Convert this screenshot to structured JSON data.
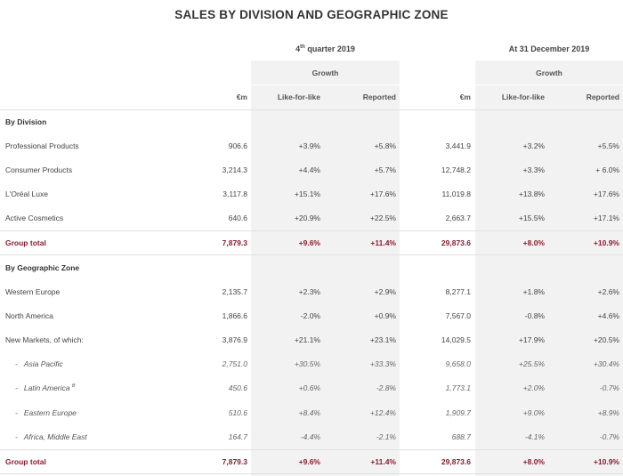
{
  "title": "SALES BY DIVISION AND GEOGRAPHIC ZONE",
  "periods": {
    "q4": {
      "pre": "4",
      "sup": "th",
      "post": " quarter 2019"
    },
    "fy": "At 31 December 2019"
  },
  "headers": {
    "growth": "Growth",
    "em": "€m",
    "lfl": "Like-for-like",
    "reported": "Reported"
  },
  "division": {
    "heading": "By Division",
    "rows": [
      {
        "label": "Professional Products",
        "q4": "906.6",
        "q4_lfl": "+3.9%",
        "q4_rep": "+5.8%",
        "fy": "3,441.9",
        "fy_lfl": "+3.2%",
        "fy_rep": "+5.5%"
      },
      {
        "label": "Consumer Products",
        "q4": "3,214.3",
        "q4_lfl": "+4.4%",
        "q4_rep": "+5.7%",
        "fy": "12,748.2",
        "fy_lfl": "+3.3%",
        "fy_rep": "+ 6.0%"
      },
      {
        "label": "L'Oréal Luxe",
        "q4": "3,117.8",
        "q4_lfl": "+15.1%",
        "q4_rep": "+17.6%",
        "fy": "11,019.8",
        "fy_lfl": "+13.8%",
        "fy_rep": "+17.6%"
      },
      {
        "label": "Active Cosmetics",
        "q4": "640.6",
        "q4_lfl": "+20.9%",
        "q4_rep": "+22.5%",
        "fy": "2,663.7",
        "fy_lfl": "+15.5%",
        "fy_rep": "+17.1%"
      }
    ],
    "total": {
      "label": "Group total",
      "q4": "7,879.3",
      "q4_lfl": "+9.6%",
      "q4_rep": "+11.4%",
      "fy": "29,873.6",
      "fy_lfl": "+8.0%",
      "fy_rep": "+10.9%"
    }
  },
  "zone": {
    "heading": "By Geographic Zone",
    "rows": [
      {
        "label": "Western Europe",
        "q4": "2,135.7",
        "q4_lfl": "+2.3%",
        "q4_rep": "+2.9%",
        "fy": "8,277.1",
        "fy_lfl": "+1.8%",
        "fy_rep": "+2.6%"
      },
      {
        "label": "North America",
        "q4": "1,866.6",
        "q4_lfl": "-2.0%",
        "q4_rep": "+0.9%",
        "fy": "7,567.0",
        "fy_lfl": "-0.8%",
        "fy_rep": "+4.6%"
      },
      {
        "label": "New Markets, of which:",
        "q4": "3,876.9",
        "q4_lfl": "+21.1%",
        "q4_rep": "+23.1%",
        "fy": "14,029.5",
        "fy_lfl": "+17.9%",
        "fy_rep": "+20.5%"
      }
    ],
    "subrows": [
      {
        "dash": "-",
        "label": "Asia Pacific",
        "sup": "",
        "q4": "2,751.0",
        "q4_lfl": "+30.5%",
        "q4_rep": "+33.3%",
        "fy": "9,658.0",
        "fy_lfl": "+25.5%",
        "fy_rep": "+30.4%"
      },
      {
        "dash": "-",
        "label": "Latin America",
        "sup": "B",
        "q4": "450.6",
        "q4_lfl": "+0.6%",
        "q4_rep": "-2.8%",
        "fy": "1,773.1",
        "fy_lfl": "+2.0%",
        "fy_rep": "-0.7%"
      },
      {
        "dash": "-",
        "label": "Eastern Europe",
        "sup": "",
        "q4": "510.6",
        "q4_lfl": "+8.4%",
        "q4_rep": "+12.4%",
        "fy": "1,909.7",
        "fy_lfl": "+9.0%",
        "fy_rep": "+8.9%"
      },
      {
        "dash": "-",
        "label": "Africa, Middle East",
        "sup": "",
        "q4": "164.7",
        "q4_lfl": "-4.4%",
        "q4_rep": "-2.1%",
        "fy": "688.7",
        "fy_lfl": "-4.1%",
        "fy_rep": "-0.7%"
      }
    ],
    "total": {
      "label": "Group total",
      "q4": "7,879.3",
      "q4_lfl": "+9.6%",
      "q4_rep": "+11.4%",
      "fy": "29,873.6",
      "fy_lfl": "+8.0%",
      "fy_rep": "+10.9%"
    }
  }
}
